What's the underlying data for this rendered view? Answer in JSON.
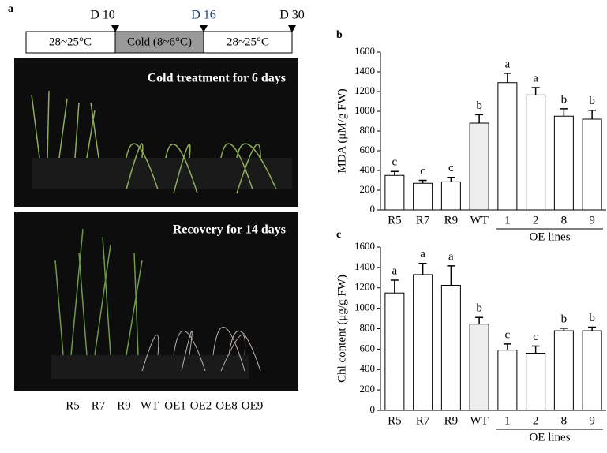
{
  "panel_labels": [
    "a",
    "b",
    "c"
  ],
  "timeline": {
    "days": [
      "D 10",
      "D 16",
      "D 30"
    ],
    "phases": [
      "28~25°C",
      "Cold (8~6°C)",
      "28~25°C"
    ]
  },
  "photos": [
    "Cold treatment for  6 days",
    "Recovery for 14 days"
  ],
  "plant_labels": [
    "R5",
    "R7",
    "R9",
    "WT",
    "OE1",
    "OE2",
    "OE8",
    "OE9"
  ],
  "chart_data": [
    {
      "type": "bar",
      "y_label": "MDA (μM/g FW)",
      "categories": [
        "R5",
        "R7",
        "R9",
        "WT",
        "1",
        "2",
        "8",
        "9"
      ],
      "values": [
        350,
        270,
        285,
        880,
        1290,
        1165,
        950,
        920
      ],
      "errors": [
        40,
        30,
        45,
        85,
        95,
        75,
        75,
        90
      ],
      "letters": [
        "c",
        "c",
        "c",
        "b",
        "a",
        "a",
        "b",
        "b"
      ],
      "colors": [
        "#ffffff",
        "#ffffff",
        "#ffffff",
        "#eeeeee",
        "#ffffff",
        "#ffffff",
        "#ffffff",
        "#ffffff"
      ],
      "group_label": "OE lines",
      "ylim": [
        0,
        1600
      ],
      "yticks": [
        0,
        200,
        400,
        600,
        800,
        1000,
        1200,
        1400,
        1600
      ]
    },
    {
      "type": "bar",
      "y_label": "Chl content (μg/g FW)",
      "categories": [
        "R5",
        "R7",
        "R9",
        "WT",
        "1",
        "2",
        "8",
        "9"
      ],
      "values": [
        1150,
        1330,
        1225,
        845,
        590,
        560,
        780,
        780
      ],
      "errors": [
        125,
        110,
        190,
        65,
        60,
        70,
        25,
        35
      ],
      "letters": [
        "a",
        "a",
        "a",
        "b",
        "c",
        "c",
        "b",
        "b"
      ],
      "colors": [
        "#ffffff",
        "#ffffff",
        "#ffffff",
        "#eeeeee",
        "#ffffff",
        "#ffffff",
        "#ffffff",
        "#ffffff"
      ],
      "group_label": "OE lines",
      "ylim": [
        0,
        1600
      ],
      "yticks": [
        0,
        200,
        400,
        600,
        800,
        1000,
        1200,
        1400,
        1600
      ]
    }
  ]
}
